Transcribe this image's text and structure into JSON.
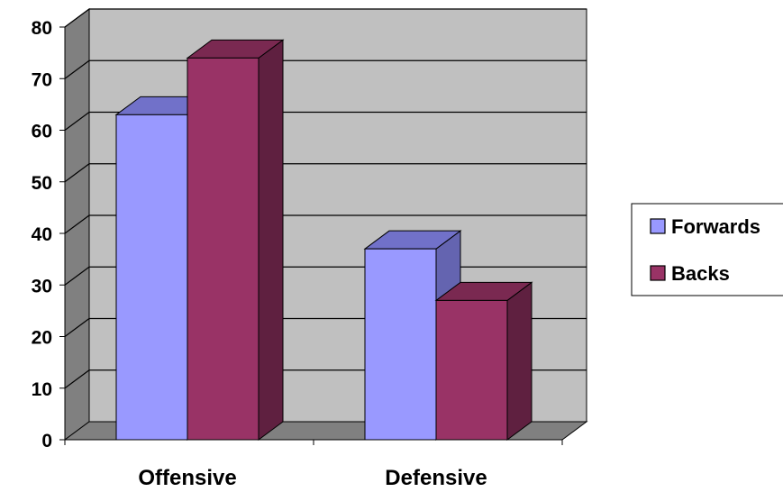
{
  "chart_data": {
    "type": "bar",
    "categories": [
      "Offensive",
      "Defensive"
    ],
    "series": [
      {
        "name": "Forwards",
        "values": [
          63,
          37
        ],
        "color": "#9999ff",
        "top_color": "#7171c9",
        "side_color": "#6464b0"
      },
      {
        "name": "Backs",
        "values": [
          74,
          27
        ],
        "color": "#993366",
        "top_color": "#7a2951",
        "side_color": "#5f2040"
      }
    ],
    "ylim": [
      0,
      80
    ],
    "yticks": [
      "0",
      "10",
      "20",
      "30",
      "40",
      "50",
      "60",
      "70",
      "80"
    ],
    "title": "",
    "xlabel": "",
    "ylabel": "",
    "grid": true,
    "legend_position": "right",
    "style": "3d-clustered-column",
    "wall_color": "#c0c0c0",
    "floor_color": "#808080"
  }
}
